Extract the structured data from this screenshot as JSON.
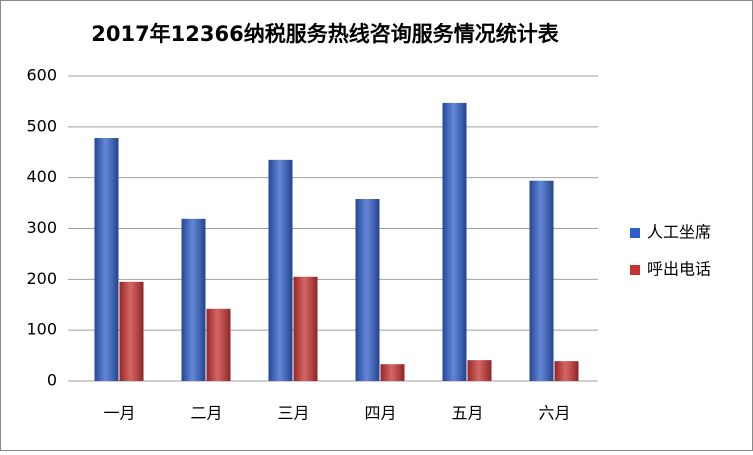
{
  "chart_data": {
    "type": "bar",
    "title": "2017年12366纳税服务热线咨询服务情况统计表",
    "categories": [
      "一月",
      "二月",
      "三月",
      "四月",
      "五月",
      "六月"
    ],
    "series": [
      {
        "name": "人工坐席",
        "color": "#2f5fc8",
        "values": [
          478,
          319,
          435,
          358,
          547,
          394
        ]
      },
      {
        "name": "呼出电话",
        "color": "#c83232",
        "values": [
          195,
          142,
          205,
          33,
          41,
          39
        ]
      }
    ],
    "ylim": [
      0,
      600
    ],
    "yticks": [
      0,
      100,
      200,
      300,
      400,
      500,
      600
    ],
    "grid": true,
    "legend": "right"
  }
}
